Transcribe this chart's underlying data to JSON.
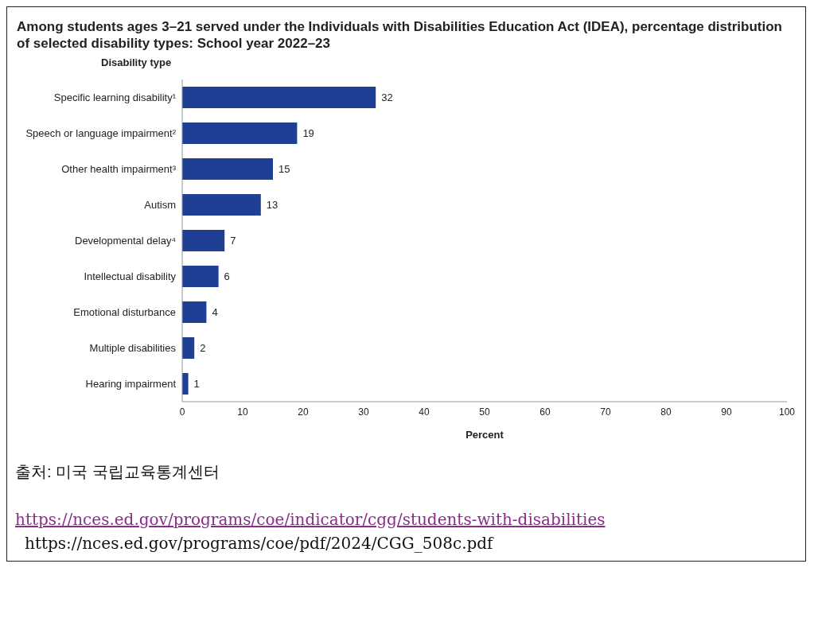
{
  "chart_data": {
    "type": "bar",
    "orientation": "horizontal",
    "title": "Among students ages 3–21 served under the Individuals with Disabilities Education Act (IDEA), percentage distribution of selected disability types: School year 2022–23",
    "ylabel": "Disability type",
    "xlabel": "Percent",
    "categories": [
      "Specific learning disability¹",
      "Speech or language impairment²",
      "Other health impairment³",
      "Autism",
      "Developmental delay⁴",
      "Intellectual disability",
      "Emotional disturbance",
      "Multiple disabilities",
      "Hearing impairment"
    ],
    "values": [
      32,
      19,
      15,
      13,
      7,
      6,
      4,
      2,
      1
    ],
    "color": "#1f3f94",
    "data_labels": true,
    "grid": false,
    "legend": false,
    "xlim": [
      0,
      100
    ],
    "xticks": [
      0,
      10,
      20,
      30,
      40,
      50,
      60,
      70,
      80,
      90,
      100
    ],
    "annotations": [
      "출처: 미국 국립교육통계센터",
      "https://nces.ed.gov/programs/coe/indicator/cgg/students-with-disabilities",
      "https://nces.ed.gov/programs/coe/pdf/2024/CGG_508c.pdf"
    ]
  }
}
